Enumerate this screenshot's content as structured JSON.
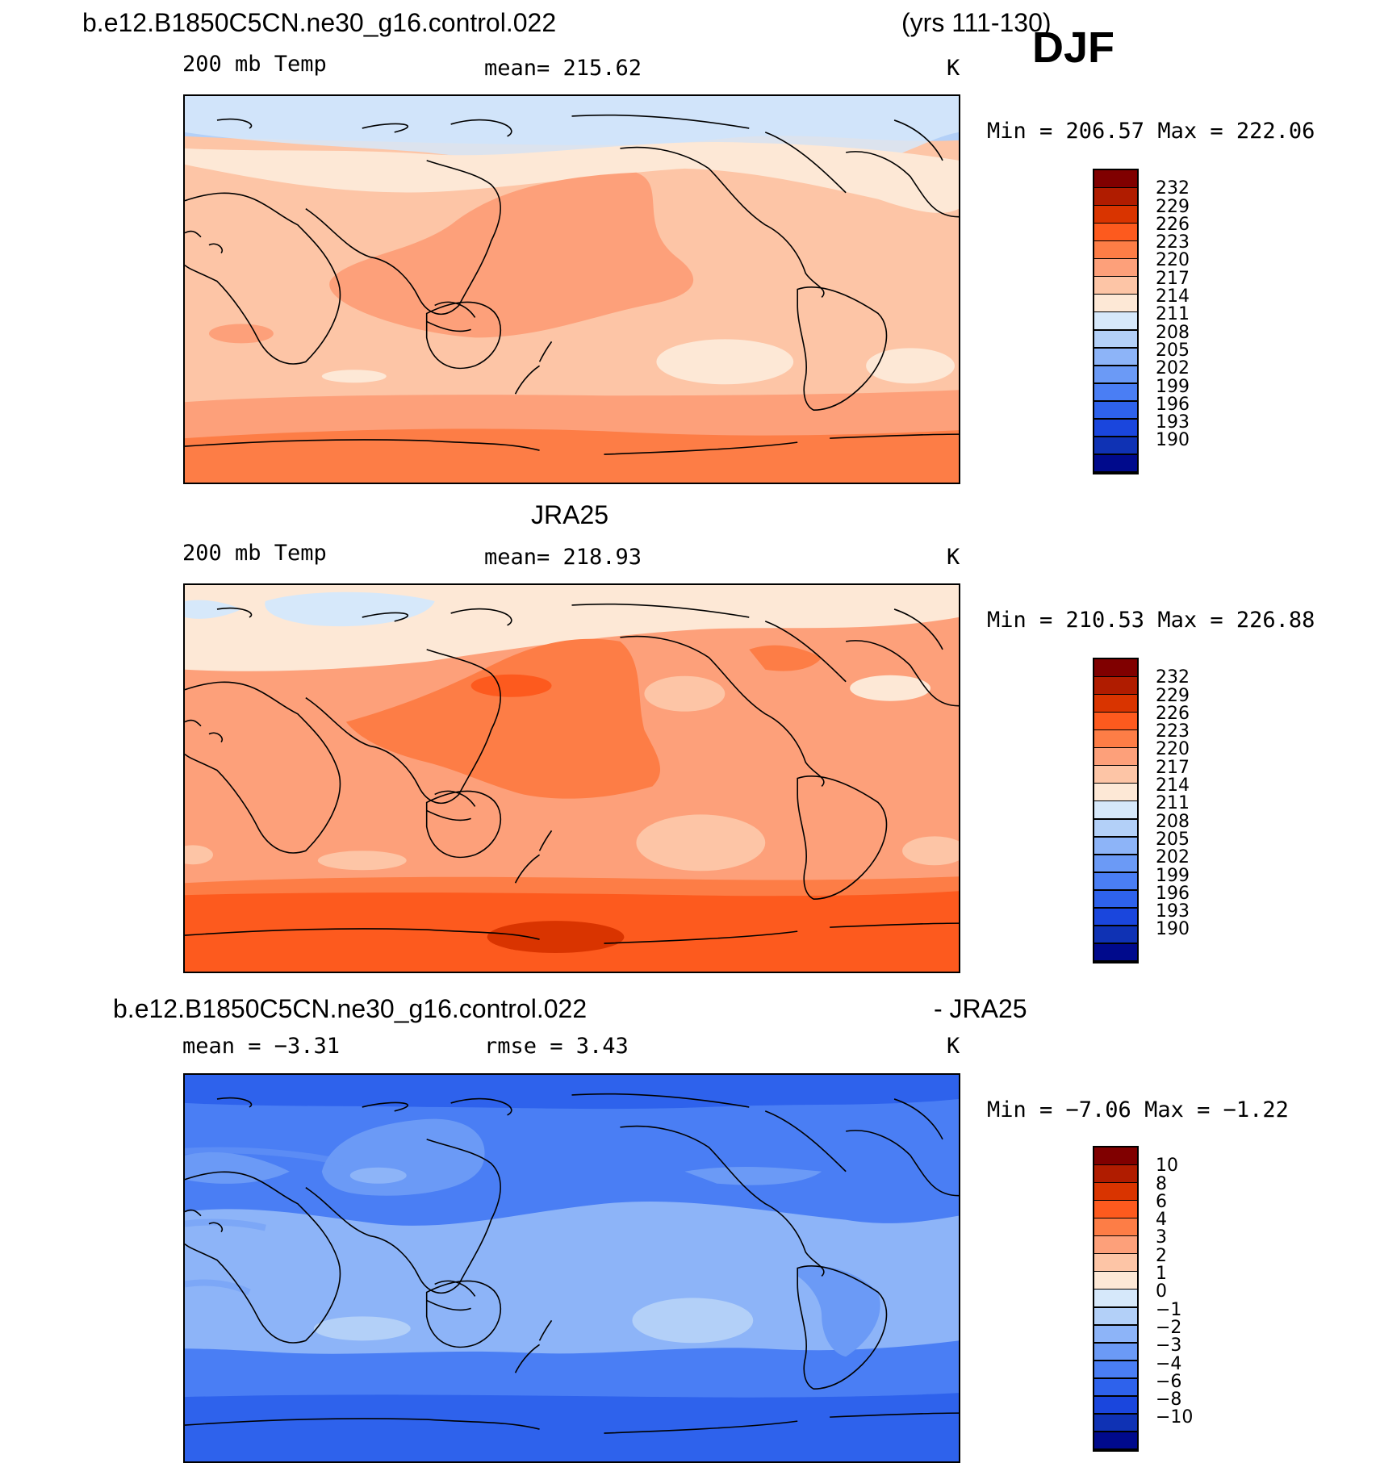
{
  "header": {
    "case_name": "b.e12.B1850C5CN.ne30_g16.control.022",
    "years": "(yrs 111-130)",
    "season": "DJF"
  },
  "palette_temp": [
    "#800000",
    "#b01c00",
    "#d93400",
    "#fd5a1e",
    "#fd7d46",
    "#fda07a",
    "#fdc5a6",
    "#fde8d6",
    "#d6e8fa",
    "#b3d0f8",
    "#8db4f8",
    "#6b9af6",
    "#4a7ef4",
    "#2e62ec",
    "#1a46dd",
    "#0f32b4",
    "#000a8c"
  ],
  "palette_diff": [
    "#800000",
    "#b01c00",
    "#d93400",
    "#fd5a1e",
    "#fd7d46",
    "#fda07a",
    "#fdc5a6",
    "#fde8d6",
    "#d6e8fa",
    "#b3d0f8",
    "#8db4f8",
    "#6b9af6",
    "#4a7ef4",
    "#2e62ec",
    "#1a46dd",
    "#0f32b4",
    "#000a8c"
  ],
  "panels": [
    {
      "id": "model",
      "label_left": "200 mb Temp",
      "label_center": "mean=  215.62",
      "label_right": "K",
      "minmax": "Min  =  206.57  Max  =  222.06",
      "legend_labels": [
        "232",
        "229",
        "226",
        "223",
        "220",
        "217",
        "214",
        "211",
        "208",
        "205",
        "202",
        "199",
        "196",
        "193",
        "190"
      ]
    },
    {
      "id": "obs",
      "title": "JRA25",
      "label_left": "200 mb Temp",
      "label_center": "mean=  218.93",
      "label_right": "K",
      "minmax": "Min  =  210.53  Max  =  226.88",
      "legend_labels": [
        "232",
        "229",
        "226",
        "223",
        "220",
        "217",
        "214",
        "211",
        "208",
        "205",
        "202",
        "199",
        "196",
        "193",
        "190"
      ]
    },
    {
      "id": "diff",
      "title_left": "b.e12.B1850C5CN.ne30_g16.control.022",
      "title_right": "- JRA25",
      "label_left": "mean  =    −3.31",
      "label_center": "rmse  =     3.43",
      "label_right": "K",
      "minmax": "Min  =    −7.06  Max  =    −1.22",
      "legend_labels": [
        "10",
        "8",
        "6",
        "4",
        "3",
        "2",
        "1",
        "0",
        "−1",
        "−2",
        "−3",
        "−4",
        "−6",
        "−8",
        "−10"
      ]
    }
  ]
}
